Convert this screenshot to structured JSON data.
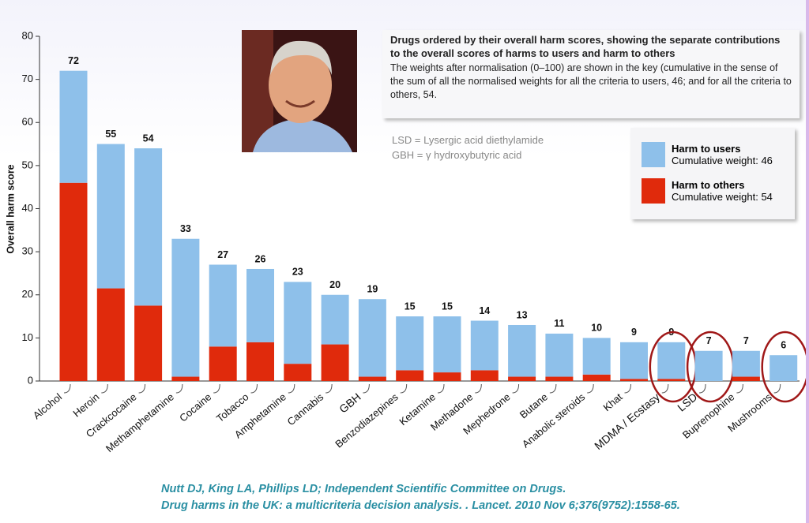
{
  "chart_data": {
    "type": "stacked_bar",
    "y_label": "Overall harm score",
    "categories": [
      "Alcohol",
      "Heroin",
      "Crackcocaine",
      "Methamphetamine",
      "Cocaine",
      "Tobacco",
      "Amphetamine",
      "Cannabis",
      "GBH",
      "Benzodiazepines",
      "Ketamine",
      "Methadone",
      "Mephedrone",
      "Butane",
      "Anabolic steroids",
      "Khat",
      "MDMA / Ecstasy",
      "LSD",
      "Buprenophine",
      "Mushrooms"
    ],
    "series": [
      {
        "name": "Harm to others",
        "legend_note": "Cumulative weight: 54",
        "color": "#e02a0c",
        "values": [
          46,
          21.5,
          17.5,
          1,
          8,
          9,
          4,
          8.5,
          1,
          2.5,
          2,
          2.5,
          1,
          1,
          1.5,
          0.5,
          0.5,
          0,
          1,
          0
        ]
      },
      {
        "name": "Harm to users",
        "legend_note": "Cumulative weight: 46",
        "color": "#8ec0ea",
        "values": [
          26,
          33.5,
          36.5,
          32,
          19,
          17,
          19,
          11.5,
          18,
          12.5,
          13,
          11.5,
          12,
          10,
          8.5,
          8.5,
          8.5,
          7,
          6,
          6
        ]
      }
    ],
    "totals": [
      72,
      55,
      54,
      33,
      27,
      26,
      23,
      20,
      19,
      15,
      15,
      14,
      13,
      11,
      10,
      9,
      9,
      7,
      7,
      6
    ],
    "highlight": [
      16,
      17,
      19
    ],
    "ylim": [
      0,
      80
    ],
    "yticks": [
      0,
      10,
      20,
      30,
      40,
      50,
      60,
      70,
      80
    ],
    "grid": false
  },
  "info_box": {
    "title": "Drugs ordered by their overall harm scores, showing the separate contributions to the overall scores of harms to users and harm to others",
    "text": "The weights after normalisation (0–100) are shown in the key (cumulative in the sense of the sum of all the normalised weights for all the criteria to users, 46; and for all the criteria to others, 54."
  },
  "notes": [
    "LSD = Lysergic acid diethylamide",
    "GBH = γ hydroxybutyric acid"
  ],
  "citation": [
    "Nutt DJ, King LA, Phillips LD; Independent Scientific Committee on Drugs.",
    "Drug harms in the UK: a multicriteria decision analysis. . Lancet. 2010 Nov 6;376(9752):1558-65."
  ]
}
